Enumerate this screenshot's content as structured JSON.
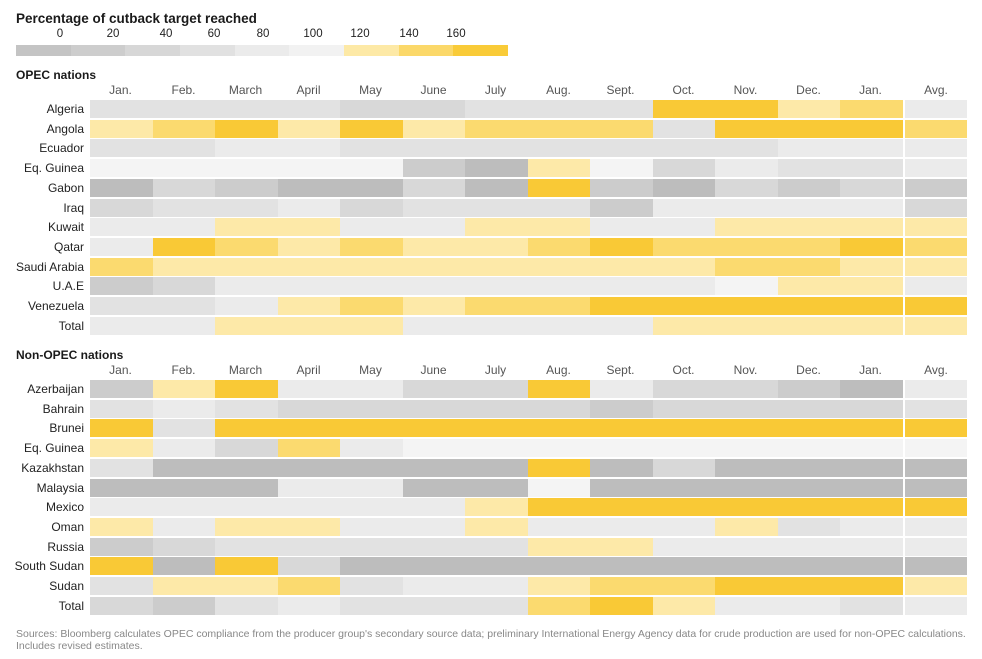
{
  "title": "Percentage of cutback target reached",
  "scale": {
    "labels": [
      "0",
      "20",
      "40",
      "60",
      "80",
      "100",
      "120",
      "140",
      "160"
    ],
    "colors": [
      "#c4c4c4",
      "#cdcdcd",
      "#d7d7d7",
      "#e1e1e1",
      "#ebebeb",
      "#f2f2f2",
      "#fde9a6",
      "#fbd869",
      "#f9cb38"
    ]
  },
  "months": [
    "Jan.",
    "Feb.",
    "March",
    "April",
    "May",
    "June",
    "July",
    "Aug.",
    "Sept.",
    "Oct.",
    "Nov.",
    "Dec.",
    "Jan.",
    "Avg."
  ],
  "level_colors": {
    "0": "#bdbdbd",
    "1": "#cccccc",
    "2": "#d8d8d8",
    "3": "#e2e2e2",
    "4": "#ebebeb",
    "5": "#f4f4f4",
    "6": "#fde9a8",
    "7": "#fbda6f",
    "8": "#f9c936"
  },
  "chart_data": [
    {
      "type": "heatmap",
      "title": "OPEC nations",
      "xlabel": "",
      "ylabel": "",
      "x": [
        "Jan.",
        "Feb.",
        "March",
        "April",
        "May",
        "June",
        "July",
        "Aug.",
        "Sept.",
        "Oct.",
        "Nov.",
        "Dec.",
        "Jan.",
        "Avg."
      ],
      "level_scale": "0-8 (0 = 0%, 8 = 160%+ of cutback target)",
      "rows": [
        {
          "label": "Algeria",
          "levels": [
            3,
            3,
            3,
            3,
            2,
            2,
            3,
            3,
            3,
            8,
            8,
            6,
            7,
            4
          ]
        },
        {
          "label": "Angola",
          "levels": [
            6,
            7,
            8,
            6,
            8,
            6,
            7,
            7,
            7,
            3,
            8,
            8,
            8,
            7
          ]
        },
        {
          "label": "Ecuador",
          "levels": [
            3,
            3,
            4,
            4,
            3,
            3,
            3,
            3,
            3,
            3,
            3,
            4,
            4,
            4
          ]
        },
        {
          "label": "Eq. Guinea",
          "levels": [
            5,
            5,
            5,
            5,
            5,
            1,
            0,
            6,
            5,
            2,
            4,
            3,
            3,
            4
          ]
        },
        {
          "label": "Gabon",
          "levels": [
            0,
            2,
            1,
            0,
            0,
            2,
            0,
            8,
            1,
            0,
            2,
            1,
            2,
            1
          ]
        },
        {
          "label": "Iraq",
          "levels": [
            2,
            3,
            3,
            4,
            2,
            3,
            3,
            3,
            1,
            4,
            4,
            4,
            4,
            2
          ]
        },
        {
          "label": "Kuwait",
          "levels": [
            4,
            4,
            6,
            6,
            4,
            4,
            6,
            6,
            4,
            4,
            6,
            6,
            6,
            6
          ]
        },
        {
          "label": "Qatar",
          "levels": [
            4,
            8,
            7,
            6,
            7,
            6,
            6,
            7,
            8,
            7,
            7,
            7,
            8,
            7
          ]
        },
        {
          "label": "Saudi Arabia",
          "levels": [
            7,
            6,
            6,
            6,
            6,
            6,
            6,
            6,
            6,
            6,
            7,
            7,
            6,
            6
          ]
        },
        {
          "label": "U.A.E",
          "levels": [
            1,
            2,
            4,
            4,
            4,
            4,
            4,
            4,
            4,
            4,
            5,
            6,
            6,
            4
          ]
        },
        {
          "label": "Venezuela",
          "levels": [
            3,
            3,
            4,
            6,
            7,
            6,
            7,
            7,
            8,
            8,
            8,
            8,
            8,
            8
          ]
        },
        {
          "label": "Total",
          "levels": [
            4,
            4,
            6,
            6,
            6,
            4,
            4,
            4,
            4,
            6,
            6,
            6,
            6,
            6
          ]
        }
      ]
    },
    {
      "type": "heatmap",
      "title": "Non-OPEC nations",
      "xlabel": "",
      "ylabel": "",
      "x": [
        "Jan.",
        "Feb.",
        "March",
        "April",
        "May",
        "June",
        "July",
        "Aug.",
        "Sept.",
        "Oct.",
        "Nov.",
        "Dec.",
        "Jan.",
        "Avg."
      ],
      "level_scale": "0-8 (0 = 0%, 8 = 160%+ of cutback target)",
      "rows": [
        {
          "label": "Azerbaijan",
          "levels": [
            1,
            6,
            8,
            4,
            4,
            2,
            2,
            8,
            4,
            2,
            2,
            1,
            0,
            4
          ]
        },
        {
          "label": "Bahrain",
          "levels": [
            3,
            4,
            3,
            2,
            2,
            2,
            2,
            2,
            1,
            2,
            2,
            2,
            2,
            3
          ]
        },
        {
          "label": "Brunei",
          "levels": [
            8,
            3,
            8,
            8,
            8,
            8,
            8,
            8,
            8,
            8,
            8,
            8,
            8,
            8
          ]
        },
        {
          "label": "Eq. Guinea",
          "levels": [
            6,
            4,
            2,
            7,
            4,
            5,
            5,
            5,
            5,
            5,
            5,
            5,
            5,
            5
          ]
        },
        {
          "label": "Kazakhstan",
          "levels": [
            3,
            0,
            0,
            0,
            0,
            0,
            0,
            8,
            0,
            2,
            0,
            0,
            0,
            0
          ]
        },
        {
          "label": "Malaysia",
          "levels": [
            0,
            0,
            0,
            4,
            4,
            0,
            0,
            5,
            0,
            0,
            0,
            0,
            0,
            0
          ]
        },
        {
          "label": "Mexico",
          "levels": [
            4,
            4,
            4,
            4,
            4,
            4,
            6,
            8,
            8,
            8,
            8,
            8,
            8,
            8
          ]
        },
        {
          "label": "Oman",
          "levels": [
            6,
            4,
            6,
            6,
            4,
            4,
            6,
            4,
            4,
            4,
            6,
            3,
            4,
            4
          ]
        },
        {
          "label": "Russia",
          "levels": [
            1,
            2,
            3,
            3,
            3,
            3,
            3,
            6,
            6,
            4,
            4,
            4,
            4,
            4
          ]
        },
        {
          "label": "South Sudan",
          "levels": [
            8,
            0,
            8,
            2,
            0,
            0,
            0,
            0,
            0,
            0,
            0,
            0,
            0,
            0
          ]
        },
        {
          "label": "Sudan",
          "levels": [
            3,
            6,
            6,
            7,
            3,
            4,
            4,
            6,
            7,
            7,
            8,
            8,
            8,
            6
          ]
        },
        {
          "label": "Total",
          "levels": [
            2,
            1,
            3,
            4,
            3,
            3,
            3,
            7,
            8,
            6,
            4,
            4,
            3,
            4
          ]
        }
      ]
    }
  ],
  "footnote": "Sources: Bloomberg calculates OPEC compliance from the producer group's secondary source data; preliminary International Energy Agency data for crude production are used for non-OPEC calculations. Includes revised estimates."
}
